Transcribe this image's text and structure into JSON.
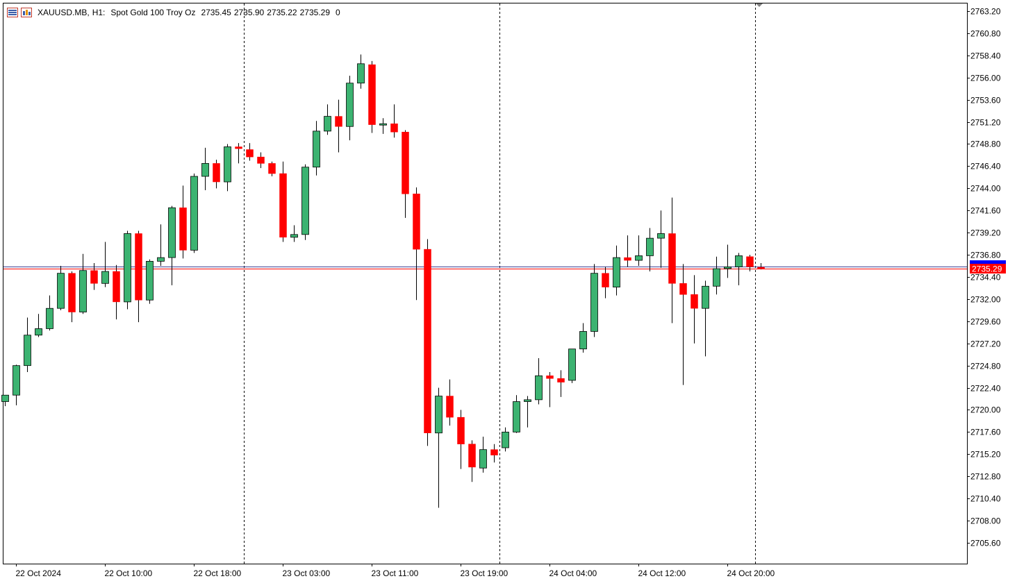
{
  "header": {
    "symbol": "XAUUSD.MB,",
    "timeframe": "H1:",
    "description": "Spot Gold 100 Troy Oz",
    "open": "2735.45",
    "high": "2735.90",
    "low": "2735.22",
    "close": "2735.29",
    "volume": "0",
    "icons": [
      "chart-window-icon",
      "indicators-icon"
    ]
  },
  "current_price_label": "2735.29",
  "colors": {
    "background": "#ffffff",
    "bull": "#3cb371",
    "bear": "#ff0000",
    "wick": "#000000",
    "grid_separator": "#000000",
    "bid_line": "#ff0000",
    "ask_line": "#3b3b8f",
    "price_tag_bg": "#ff0000",
    "ask_tag_bg": "#0000ff"
  },
  "chart_data": {
    "type": "candlestick",
    "title": "XAUUSD.MB, H1: Spot Gold 100 Troy Oz",
    "ylim": [
      2703.4,
      2764.4
    ],
    "y_ticks": [
      "2763.20",
      "2760.80",
      "2758.40",
      "2756.00",
      "2753.60",
      "2751.20",
      "2748.80",
      "2746.40",
      "2744.00",
      "2741.60",
      "2739.20",
      "2736.80",
      "2734.40",
      "2732.00",
      "2729.60",
      "2727.20",
      "2724.80",
      "2722.40",
      "2720.00",
      "2717.60",
      "2715.20",
      "2712.80",
      "2710.40",
      "2708.00",
      "2705.60"
    ],
    "x_ticks": [
      {
        "label": "22 Oct 2024",
        "index": 1
      },
      {
        "label": "22 Oct 10:00",
        "index": 9
      },
      {
        "label": "22 Oct 18:00",
        "index": 17
      },
      {
        "label": "23 Oct 03:00",
        "index": 25
      },
      {
        "label": "23 Oct 11:00",
        "index": 33
      },
      {
        "label": "23 Oct 19:00",
        "index": 41
      },
      {
        "label": "24 Oct 04:00",
        "index": 49
      },
      {
        "label": "24 Oct 12:00",
        "index": 57
      },
      {
        "label": "24 Oct 20:00",
        "index": 65
      }
    ],
    "day_separators_after_index": [
      21.5,
      44.5,
      67.5
    ],
    "bid": 2735.29,
    "ask": 2735.55,
    "candles": [
      {
        "o": 2720.9,
        "h": 2721.4,
        "l": 2720.4,
        "c": 2721.6
      },
      {
        "o": 2721.6,
        "h": 2724.9,
        "l": 2720.5,
        "c": 2724.8
      },
      {
        "o": 2724.8,
        "h": 2730.0,
        "l": 2724.1,
        "c": 2728.1
      },
      {
        "o": 2728.1,
        "h": 2730.4,
        "l": 2727.9,
        "c": 2728.8
      },
      {
        "o": 2728.8,
        "h": 2732.4,
        "l": 2728.6,
        "c": 2731.0
      },
      {
        "o": 2731.0,
        "h": 2735.6,
        "l": 2730.8,
        "c": 2734.8
      },
      {
        "o": 2734.8,
        "h": 2735.0,
        "l": 2729.5,
        "c": 2730.6
      },
      {
        "o": 2730.6,
        "h": 2736.9,
        "l": 2730.4,
        "c": 2735.1
      },
      {
        "o": 2735.1,
        "h": 2735.9,
        "l": 2733.0,
        "c": 2733.7
      },
      {
        "o": 2733.7,
        "h": 2738.2,
        "l": 2733.3,
        "c": 2735.0
      },
      {
        "o": 2735.0,
        "h": 2735.7,
        "l": 2729.8,
        "c": 2731.7
      },
      {
        "o": 2731.7,
        "h": 2739.4,
        "l": 2730.9,
        "c": 2739.1
      },
      {
        "o": 2739.1,
        "h": 2739.4,
        "l": 2729.5,
        "c": 2731.9
      },
      {
        "o": 2731.9,
        "h": 2736.3,
        "l": 2731.5,
        "c": 2736.1
      },
      {
        "o": 2736.1,
        "h": 2740.1,
        "l": 2735.6,
        "c": 2736.5
      },
      {
        "o": 2736.5,
        "h": 2742.1,
        "l": 2733.5,
        "c": 2741.9
      },
      {
        "o": 2741.9,
        "h": 2744.3,
        "l": 2736.4,
        "c": 2737.3
      },
      {
        "o": 2737.3,
        "h": 2745.6,
        "l": 2737.0,
        "c": 2745.3
      },
      {
        "o": 2745.3,
        "h": 2748.4,
        "l": 2743.8,
        "c": 2746.7
      },
      {
        "o": 2746.7,
        "h": 2747.1,
        "l": 2744.0,
        "c": 2744.7
      },
      {
        "o": 2744.7,
        "h": 2748.8,
        "l": 2743.7,
        "c": 2748.5
      },
      {
        "o": 2748.5,
        "h": 2748.9,
        "l": 2746.7,
        "c": 2748.3
      },
      {
        "o": 2748.2,
        "h": 2748.9,
        "l": 2747.0,
        "c": 2747.4
      },
      {
        "o": 2747.4,
        "h": 2747.9,
        "l": 2746.2,
        "c": 2746.7
      },
      {
        "o": 2746.7,
        "h": 2746.9,
        "l": 2745.3,
        "c": 2745.6
      },
      {
        "o": 2745.6,
        "h": 2746.9,
        "l": 2738.2,
        "c": 2738.7
      },
      {
        "o": 2738.7,
        "h": 2740.0,
        "l": 2738.2,
        "c": 2739.0
      },
      {
        "o": 2739.0,
        "h": 2746.6,
        "l": 2738.4,
        "c": 2746.3
      },
      {
        "o": 2746.3,
        "h": 2751.3,
        "l": 2745.4,
        "c": 2750.2
      },
      {
        "o": 2750.2,
        "h": 2753.1,
        "l": 2749.8,
        "c": 2751.8
      },
      {
        "o": 2751.8,
        "h": 2753.6,
        "l": 2747.9,
        "c": 2750.7
      },
      {
        "o": 2750.7,
        "h": 2756.2,
        "l": 2749.2,
        "c": 2755.4
      },
      {
        "o": 2755.4,
        "h": 2758.5,
        "l": 2754.8,
        "c": 2757.5
      },
      {
        "o": 2757.4,
        "h": 2757.8,
        "l": 2750.0,
        "c": 2750.9
      },
      {
        "o": 2750.9,
        "h": 2751.6,
        "l": 2749.9,
        "c": 2751.0
      },
      {
        "o": 2751.0,
        "h": 2753.1,
        "l": 2749.5,
        "c": 2750.1
      },
      {
        "o": 2750.1,
        "h": 2750.3,
        "l": 2740.8,
        "c": 2743.4
      },
      {
        "o": 2743.4,
        "h": 2744.1,
        "l": 2731.9,
        "c": 2737.4
      },
      {
        "o": 2737.4,
        "h": 2738.5,
        "l": 2716.1,
        "c": 2717.5
      },
      {
        "o": 2717.5,
        "h": 2722.4,
        "l": 2709.4,
        "c": 2721.5
      },
      {
        "o": 2721.5,
        "h": 2723.3,
        "l": 2718.3,
        "c": 2719.2
      },
      {
        "o": 2719.2,
        "h": 2720.0,
        "l": 2713.6,
        "c": 2716.3
      },
      {
        "o": 2716.3,
        "h": 2716.7,
        "l": 2712.2,
        "c": 2713.8
      },
      {
        "o": 2713.7,
        "h": 2717.1,
        "l": 2713.2,
        "c": 2715.7
      },
      {
        "o": 2715.7,
        "h": 2716.3,
        "l": 2714.3,
        "c": 2715.1
      },
      {
        "o": 2715.9,
        "h": 2718.1,
        "l": 2715.5,
        "c": 2717.6
      },
      {
        "o": 2717.6,
        "h": 2721.6,
        "l": 2717.5,
        "c": 2720.9
      },
      {
        "o": 2720.9,
        "h": 2721.5,
        "l": 2718.1,
        "c": 2721.1
      },
      {
        "o": 2721.1,
        "h": 2725.6,
        "l": 2720.6,
        "c": 2723.7
      },
      {
        "o": 2723.7,
        "h": 2724.1,
        "l": 2720.3,
        "c": 2723.4
      },
      {
        "o": 2723.4,
        "h": 2724.3,
        "l": 2721.4,
        "c": 2723.0
      },
      {
        "o": 2723.2,
        "h": 2726.6,
        "l": 2722.9,
        "c": 2726.6
      },
      {
        "o": 2726.6,
        "h": 2729.4,
        "l": 2726.2,
        "c": 2728.5
      },
      {
        "o": 2728.5,
        "h": 2735.8,
        "l": 2727.9,
        "c": 2734.8
      },
      {
        "o": 2734.8,
        "h": 2735.5,
        "l": 2732.1,
        "c": 2733.3
      },
      {
        "o": 2733.3,
        "h": 2737.8,
        "l": 2732.4,
        "c": 2736.5
      },
      {
        "o": 2736.5,
        "h": 2738.9,
        "l": 2735.5,
        "c": 2736.2
      },
      {
        "o": 2736.2,
        "h": 2738.9,
        "l": 2735.6,
        "c": 2736.7
      },
      {
        "o": 2736.7,
        "h": 2739.7,
        "l": 2735.0,
        "c": 2738.6
      },
      {
        "o": 2738.6,
        "h": 2741.6,
        "l": 2735.4,
        "c": 2739.1
      },
      {
        "o": 2739.1,
        "h": 2743.0,
        "l": 2729.4,
        "c": 2733.7
      },
      {
        "o": 2733.7,
        "h": 2735.8,
        "l": 2722.7,
        "c": 2732.5
      },
      {
        "o": 2732.5,
        "h": 2734.6,
        "l": 2727.2,
        "c": 2731.0
      },
      {
        "o": 2731.0,
        "h": 2734.0,
        "l": 2725.8,
        "c": 2733.4
      },
      {
        "o": 2733.4,
        "h": 2736.6,
        "l": 2732.5,
        "c": 2735.3
      },
      {
        "o": 2735.3,
        "h": 2737.9,
        "l": 2734.3,
        "c": 2735.5
      },
      {
        "o": 2735.5,
        "h": 2737.0,
        "l": 2733.5,
        "c": 2736.7
      },
      {
        "o": 2736.6,
        "h": 2736.8,
        "l": 2735.0,
        "c": 2735.5
      },
      {
        "o": 2735.45,
        "h": 2735.9,
        "l": 2735.22,
        "c": 2735.29
      }
    ]
  }
}
